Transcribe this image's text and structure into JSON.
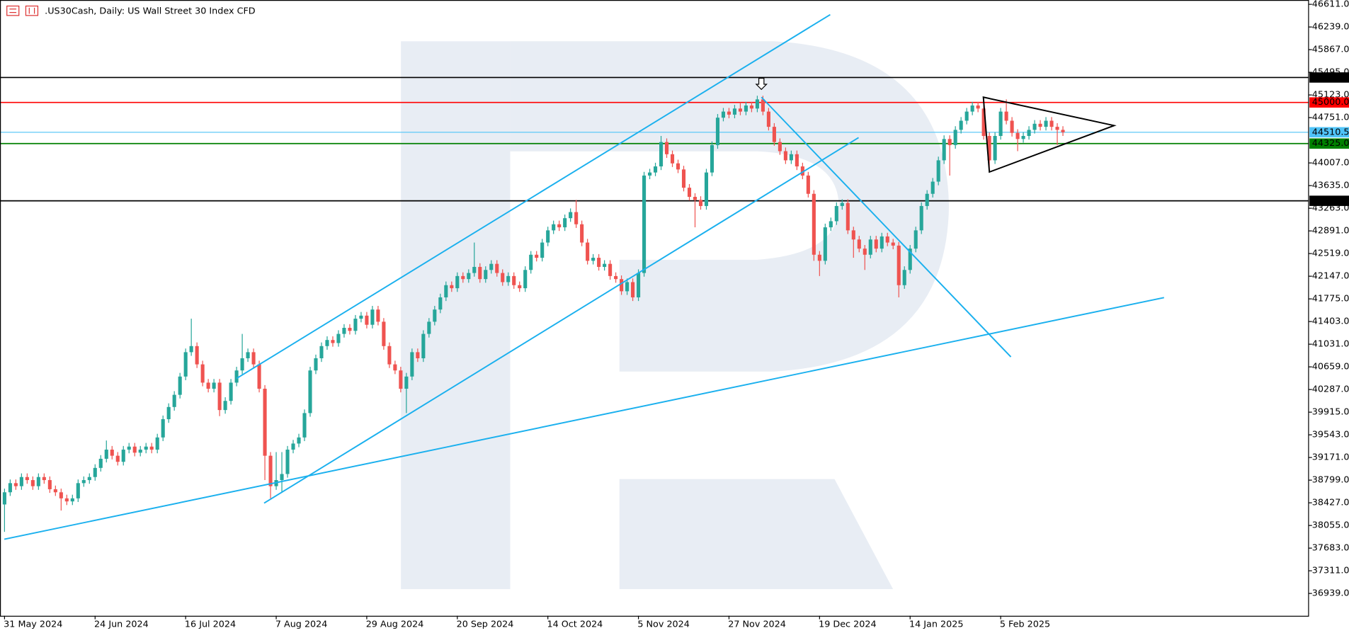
{
  "header": {
    "title": ".US30Cash, Daily:  US Wall Street 30 Index CFD"
  },
  "chart_data": {
    "type": "candlestick",
    "up_color": "#26a69a",
    "down_color": "#ef5350",
    "xlim": [
      -0.8,
      230.4
    ],
    "xticks": [
      {
        "value": 0,
        "label": "31 May 2024"
      },
      {
        "value": 16,
        "label": "24 Jun 2024"
      },
      {
        "value": 32,
        "label": "16 Jul 2024"
      },
      {
        "value": 48,
        "label": "7 Aug 2024"
      },
      {
        "value": 64,
        "label": "29 Aug 2024"
      },
      {
        "value": 80,
        "label": "20 Sep 2024"
      },
      {
        "value": 96,
        "label": "14 Oct 2024"
      },
      {
        "value": 112,
        "label": "5 Nov 2024"
      },
      {
        "value": 128,
        "label": "27 Nov 2024"
      },
      {
        "value": 144,
        "label": "19 Dec 2024"
      },
      {
        "value": 160,
        "label": "14 Jan 2025"
      },
      {
        "value": 176,
        "label": "5 Feb 2025"
      }
    ],
    "ylim": [
      36572,
      46682
    ],
    "yticks": [
      {
        "value": 46611,
        "label": "46611.0"
      },
      {
        "value": 46239,
        "label": "46239.0"
      },
      {
        "value": 45867,
        "label": "45867.0"
      },
      {
        "value": 45495,
        "label": "45495.0"
      },
      {
        "value": 45123,
        "label": "45123.0"
      },
      {
        "value": 44751,
        "label": "44751.0"
      },
      {
        "value": 44007,
        "label": "44007.0"
      },
      {
        "value": 43635,
        "label": "43635.0"
      },
      {
        "value": 43263,
        "label": "43263.0"
      },
      {
        "value": 42891,
        "label": "42891.0"
      },
      {
        "value": 42519,
        "label": "42519.0"
      },
      {
        "value": 42147,
        "label": "42147.0"
      },
      {
        "value": 41775,
        "label": "41775.0"
      },
      {
        "value": 41403,
        "label": "41403.0"
      },
      {
        "value": 41031,
        "label": "41031.0"
      },
      {
        "value": 40659,
        "label": "40659.0"
      },
      {
        "value": 40287,
        "label": "40287.0"
      },
      {
        "value": 39915,
        "label": "39915.0"
      },
      {
        "value": 39543,
        "label": "39543.0"
      },
      {
        "value": 39171,
        "label": "39171.0"
      },
      {
        "value": 38799,
        "label": "38799.0"
      },
      {
        "value": 38427,
        "label": "38427.0"
      },
      {
        "value": 38055,
        "label": "38055.0"
      },
      {
        "value": 37683,
        "label": "37683.0"
      },
      {
        "value": 37311,
        "label": "37311.0"
      },
      {
        "value": 36939,
        "label": "36939.0"
      }
    ],
    "levels": [
      {
        "value": 45410,
        "label": "45410.0",
        "color": "#000000"
      },
      {
        "value": 45000,
        "label": "45000.0",
        "color": "#ff0000"
      },
      {
        "value": 44510.5,
        "label": "44510.5",
        "color": "#4fc3f7"
      },
      {
        "value": 44325,
        "label": "44325.0",
        "color": "#008000"
      },
      {
        "value": 43385,
        "label": "43385.0",
        "color": "#000000"
      }
    ],
    "candles": [
      [
        38400,
        38660,
        37950,
        38600
      ],
      [
        38600,
        38810,
        38540,
        38750
      ],
      [
        38750,
        38810,
        38640,
        38700
      ],
      [
        38700,
        38910,
        38640,
        38850
      ],
      [
        38850,
        38910,
        38740,
        38800
      ],
      [
        38800,
        38860,
        38640,
        38700
      ],
      [
        38700,
        38910,
        38640,
        38850
      ],
      [
        38850,
        38910,
        38740,
        38800
      ],
      [
        38800,
        38860,
        38590,
        38650
      ],
      [
        38650,
        38710,
        38540,
        38600
      ],
      [
        38600,
        38660,
        38300,
        38500
      ],
      [
        38500,
        38560,
        38390,
        38450
      ],
      [
        38450,
        38560,
        38390,
        38500
      ],
      [
        38500,
        38810,
        38440,
        38750
      ],
      [
        38750,
        38860,
        38690,
        38800
      ],
      [
        38800,
        38910,
        38740,
        38850
      ],
      [
        38850,
        39060,
        38790,
        39000
      ],
      [
        39000,
        39210,
        38940,
        39150
      ],
      [
        39150,
        39450,
        39090,
        39300
      ],
      [
        39300,
        39360,
        39140,
        39200
      ],
      [
        39200,
        39260,
        39040,
        39100
      ],
      [
        39100,
        39360,
        39040,
        39300
      ],
      [
        39300,
        39410,
        39240,
        39350
      ],
      [
        39350,
        39410,
        39190,
        39250
      ],
      [
        39250,
        39360,
        39190,
        39300
      ],
      [
        39300,
        39410,
        39240,
        39350
      ],
      [
        39350,
        39410,
        39240,
        39300
      ],
      [
        39300,
        39560,
        39240,
        39500
      ],
      [
        39500,
        39860,
        39440,
        39800
      ],
      [
        39800,
        40060,
        39740,
        40000
      ],
      [
        40000,
        40260,
        39940,
        40200
      ],
      [
        40200,
        40560,
        40140,
        40500
      ],
      [
        40500,
        40960,
        40440,
        40900
      ],
      [
        40900,
        41450,
        40840,
        41000
      ],
      [
        41000,
        41060,
        40640,
        40700
      ],
      [
        40700,
        40760,
        40340,
        40400
      ],
      [
        40400,
        40460,
        40240,
        40300
      ],
      [
        40300,
        40460,
        40240,
        40400
      ],
      [
        40400,
        40460,
        39850,
        39950
      ],
      [
        39950,
        40160,
        39890,
        40100
      ],
      [
        40100,
        40460,
        40040,
        40400
      ],
      [
        40400,
        40660,
        40340,
        40600
      ],
      [
        40600,
        41200,
        40540,
        40800
      ],
      [
        40800,
        40960,
        40740,
        40900
      ],
      [
        40900,
        40960,
        40640,
        40700
      ],
      [
        40700,
        40760,
        40240,
        40300
      ],
      [
        40300,
        40360,
        38800,
        39200
      ],
      [
        39200,
        39260,
        38500,
        38700
      ],
      [
        38700,
        39260,
        38640,
        38800
      ],
      [
        38800,
        39260,
        38600,
        38900
      ],
      [
        38900,
        39360,
        38840,
        39300
      ],
      [
        39300,
        39460,
        39240,
        39400
      ],
      [
        39400,
        39560,
        39340,
        39500
      ],
      [
        39500,
        39960,
        39440,
        39900
      ],
      [
        39900,
        40660,
        39840,
        40600
      ],
      [
        40600,
        40860,
        40540,
        40800
      ],
      [
        40800,
        41060,
        40740,
        41000
      ],
      [
        41000,
        41160,
        40940,
        41100
      ],
      [
        41100,
        41160,
        40990,
        41050
      ],
      [
        41050,
        41260,
        40990,
        41200
      ],
      [
        41200,
        41360,
        41140,
        41300
      ],
      [
        41300,
        41360,
        41190,
        41250
      ],
      [
        41250,
        41510,
        41190,
        41450
      ],
      [
        41450,
        41560,
        41390,
        41500
      ],
      [
        41500,
        41560,
        41290,
        41350
      ],
      [
        41350,
        41660,
        41290,
        41600
      ],
      [
        41600,
        41660,
        41340,
        41400
      ],
      [
        41400,
        41460,
        40940,
        41000
      ],
      [
        41000,
        41060,
        40640,
        40700
      ],
      [
        40700,
        40760,
        40540,
        40600
      ],
      [
        40600,
        40660,
        40240,
        40300
      ],
      [
        40300,
        40560,
        39900,
        40500
      ],
      [
        40500,
        40960,
        40440,
        40900
      ],
      [
        40900,
        40960,
        40740,
        40800
      ],
      [
        40800,
        41260,
        40740,
        41200
      ],
      [
        41200,
        41460,
        41140,
        41400
      ],
      [
        41400,
        41660,
        41340,
        41600
      ],
      [
        41600,
        41860,
        41540,
        41800
      ],
      [
        41800,
        42060,
        41740,
        42000
      ],
      [
        42000,
        42060,
        41890,
        41950
      ],
      [
        41950,
        42210,
        41890,
        42150
      ],
      [
        42150,
        42210,
        42040,
        42100
      ],
      [
        42100,
        42260,
        42040,
        42200
      ],
      [
        42200,
        42700,
        42140,
        42300
      ],
      [
        42300,
        42360,
        42040,
        42100
      ],
      [
        42100,
        42310,
        42040,
        42250
      ],
      [
        42250,
        42410,
        42190,
        42350
      ],
      [
        42350,
        42410,
        42140,
        42200
      ],
      [
        42200,
        42260,
        41990,
        42050
      ],
      [
        42050,
        42210,
        41990,
        42150
      ],
      [
        42150,
        42210,
        41940,
        42000
      ],
      [
        42000,
        42060,
        41890,
        41950
      ],
      [
        41950,
        42310,
        41890,
        42250
      ],
      [
        42250,
        42560,
        42190,
        42500
      ],
      [
        42500,
        42560,
        42390,
        42450
      ],
      [
        42450,
        42760,
        42390,
        42700
      ],
      [
        42700,
        42960,
        42640,
        42900
      ],
      [
        42900,
        43060,
        42840,
        43000
      ],
      [
        43000,
        43060,
        42890,
        42950
      ],
      [
        42950,
        43160,
        42890,
        43100
      ],
      [
        43100,
        43260,
        43040,
        43200
      ],
      [
        43200,
        43400,
        42940,
        43000
      ],
      [
        43000,
        43060,
        42640,
        42700
      ],
      [
        42700,
        42760,
        42340,
        42400
      ],
      [
        42400,
        42510,
        42340,
        42450
      ],
      [
        42450,
        42510,
        42240,
        42300
      ],
      [
        42300,
        42410,
        42240,
        42350
      ],
      [
        42350,
        42410,
        42090,
        42150
      ],
      [
        42150,
        42210,
        42040,
        42100
      ],
      [
        42100,
        42160,
        41840,
        41900
      ],
      [
        41900,
        42110,
        41840,
        42050
      ],
      [
        42050,
        42110,
        41740,
        41800
      ],
      [
        41800,
        42260,
        41740,
        42200
      ],
      [
        42200,
        43860,
        42140,
        43800
      ],
      [
        43800,
        43910,
        43740,
        43850
      ],
      [
        43850,
        44010,
        43790,
        43950
      ],
      [
        43950,
        44450,
        43890,
        44350
      ],
      [
        44350,
        44410,
        44090,
        44150
      ],
      [
        44150,
        44210,
        43940,
        44000
      ],
      [
        44000,
        44060,
        43840,
        43900
      ],
      [
        43900,
        43960,
        43540,
        43600
      ],
      [
        43600,
        43660,
        43390,
        43450
      ],
      [
        43450,
        43510,
        42950,
        43400
      ],
      [
        43400,
        43460,
        43240,
        43300
      ],
      [
        43300,
        43910,
        43240,
        43850
      ],
      [
        43850,
        44360,
        43790,
        44300
      ],
      [
        44300,
        44810,
        44240,
        44750
      ],
      [
        44750,
        44910,
        44690,
        44850
      ],
      [
        44850,
        44910,
        44740,
        44800
      ],
      [
        44800,
        44960,
        44740,
        44900
      ],
      [
        44900,
        45000,
        44790,
        44850
      ],
      [
        44850,
        45010,
        44790,
        44950
      ],
      [
        44950,
        45010,
        44840,
        44900
      ],
      [
        44900,
        45110,
        44840,
        45050
      ],
      [
        45050,
        45110,
        44790,
        44850
      ],
      [
        44850,
        44910,
        44540,
        44600
      ],
      [
        44600,
        44660,
        44290,
        44350
      ],
      [
        44350,
        44410,
        44140,
        44200
      ],
      [
        44200,
        44260,
        43990,
        44050
      ],
      [
        44050,
        44210,
        43990,
        44150
      ],
      [
        44150,
        44210,
        43890,
        43950
      ],
      [
        43950,
        44010,
        43740,
        43800
      ],
      [
        43800,
        43860,
        43440,
        43500
      ],
      [
        43500,
        43560,
        42400,
        42500
      ],
      [
        42500,
        42560,
        42150,
        42400
      ],
      [
        42400,
        43010,
        42340,
        42950
      ],
      [
        42950,
        43110,
        42890,
        43050
      ],
      [
        43050,
        43360,
        42990,
        43300
      ],
      [
        43300,
        43410,
        43240,
        43350
      ],
      [
        43350,
        43410,
        42840,
        42900
      ],
      [
        42900,
        42960,
        42450,
        42750
      ],
      [
        42750,
        42810,
        42540,
        42600
      ],
      [
        42600,
        42660,
        42250,
        42500
      ],
      [
        42500,
        42810,
        42440,
        42750
      ],
      [
        42750,
        42810,
        42540,
        42600
      ],
      [
        42600,
        42860,
        42540,
        42800
      ],
      [
        42800,
        42860,
        42640,
        42700
      ],
      [
        42700,
        42760,
        42590,
        42650
      ],
      [
        42650,
        42710,
        41800,
        42000
      ],
      [
        42000,
        42310,
        41940,
        42250
      ],
      [
        42250,
        42660,
        42190,
        42600
      ],
      [
        42600,
        42960,
        42540,
        42900
      ],
      [
        42900,
        43360,
        42840,
        43300
      ],
      [
        43300,
        43560,
        43240,
        43500
      ],
      [
        43500,
        43760,
        43440,
        43700
      ],
      [
        43700,
        44110,
        43640,
        44050
      ],
      [
        44050,
        44460,
        43990,
        44400
      ],
      [
        44400,
        44460,
        43800,
        44300
      ],
      [
        44300,
        44610,
        44240,
        44550
      ],
      [
        44550,
        44760,
        44490,
        44700
      ],
      [
        44700,
        44910,
        44640,
        44850
      ],
      [
        44850,
        45010,
        44790,
        44950
      ],
      [
        44950,
        45010,
        44840,
        44900
      ],
      [
        44900,
        44960,
        44390,
        44450
      ],
      [
        44450,
        44510,
        43900,
        44050
      ],
      [
        44050,
        44510,
        43990,
        44450
      ],
      [
        44450,
        44910,
        44390,
        44850
      ],
      [
        44850,
        45050,
        44640,
        44700
      ],
      [
        44700,
        44760,
        44440,
        44500
      ],
      [
        44500,
        44560,
        44200,
        44400
      ],
      [
        44400,
        44510,
        44340,
        44450
      ],
      [
        44450,
        44610,
        44390,
        44550
      ],
      [
        44550,
        44710,
        44490,
        44650
      ],
      [
        44650,
        44710,
        44540,
        44600
      ],
      [
        44600,
        44760,
        44540,
        44700
      ],
      [
        44700,
        44760,
        44540,
        44600
      ],
      [
        44600,
        44660,
        44300,
        44550
      ],
      [
        44550,
        44610,
        44450,
        44510.5
      ]
    ]
  }
}
